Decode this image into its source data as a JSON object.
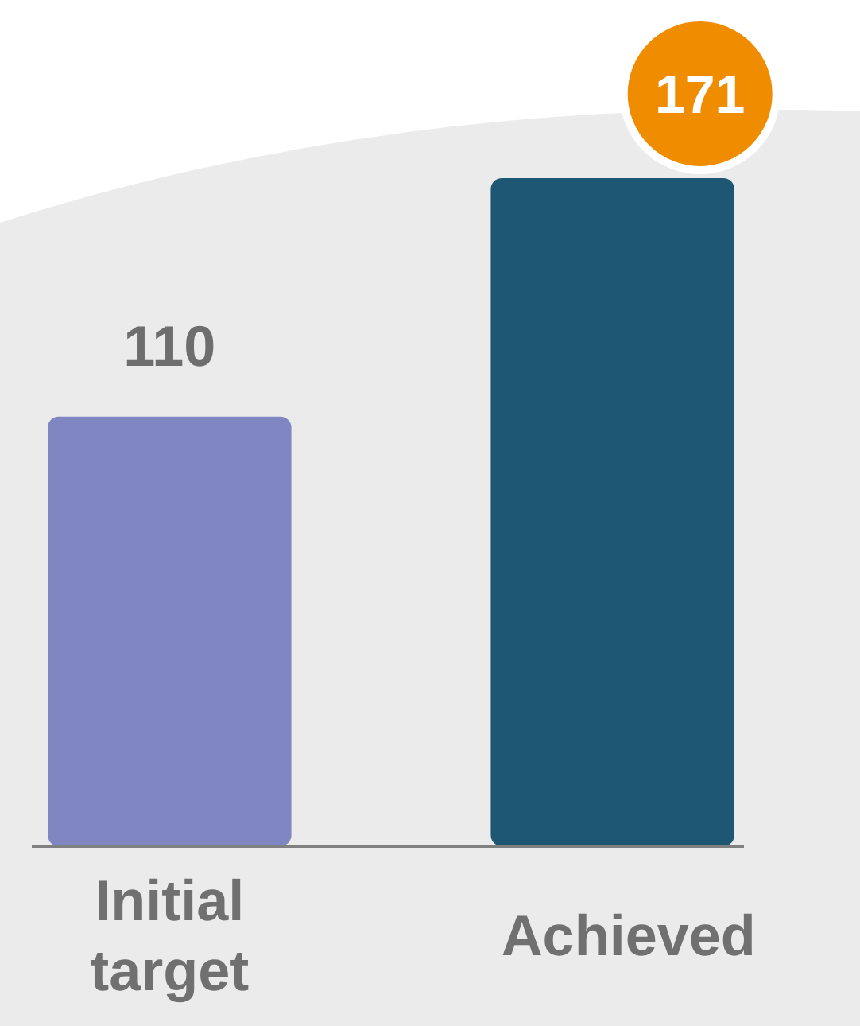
{
  "chart_data": {
    "type": "bar",
    "categories": [
      "Initial target",
      "Achieved"
    ],
    "values": [
      110,
      171
    ],
    "colors": [
      "#7f86c2",
      "#1d5774"
    ],
    "data_labels": true
  }
}
